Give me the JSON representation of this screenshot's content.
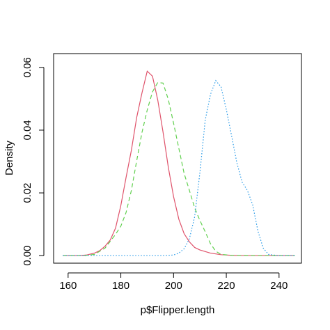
{
  "chart_data": {
    "type": "line",
    "title": "",
    "xlabel": "p$Flipper.length",
    "ylabel": "Density",
    "xlim": [
      154.5,
      248.5
    ],
    "ylim": [
      -0.0024,
      0.0644
    ],
    "x_ticks": [
      160,
      180,
      200,
      220,
      240
    ],
    "y_ticks": [
      0.0,
      0.02,
      0.04,
      0.06
    ],
    "x_tick_labels": [
      "160",
      "180",
      "200",
      "220",
      "240"
    ],
    "y_tick_labels": [
      "0.00",
      "0.02",
      "0.04",
      "0.06"
    ],
    "grid": false,
    "legend": "none",
    "series": [
      {
        "color": "#DF536B",
        "dash": "solid",
        "x": [
          158,
          164,
          167,
          170,
          172,
          174,
          176,
          178,
          180,
          182,
          184,
          186,
          188,
          190,
          192,
          194,
          196,
          198,
          200,
          202,
          204,
          206,
          208,
          210,
          214,
          218,
          222,
          226,
          232,
          240,
          246
        ],
        "y": [
          0,
          0,
          0.0002,
          0.0008,
          0.0016,
          0.003,
          0.005,
          0.0088,
          0.016,
          0.025,
          0.0336,
          0.044,
          0.0518,
          0.0588,
          0.0572,
          0.0496,
          0.0394,
          0.0282,
          0.0188,
          0.0116,
          0.007,
          0.0044,
          0.0026,
          0.0018,
          0.0008,
          0.0003,
          0.0001,
          0,
          0,
          0,
          0
        ]
      },
      {
        "color": "#61D04F",
        "dash": "dashed",
        "x": [
          158,
          166,
          170,
          174,
          176,
          178,
          180,
          182,
          184,
          186,
          188,
          190,
          192,
          194,
          196,
          198,
          200,
          202,
          204,
          206,
          208,
          210,
          212,
          214,
          216,
          218,
          222,
          230,
          240,
          246
        ],
        "y": [
          0,
          0,
          0.0004,
          0.0024,
          0.0046,
          0.0068,
          0.0094,
          0.0138,
          0.0208,
          0.0302,
          0.0392,
          0.0464,
          0.0522,
          0.0552,
          0.055,
          0.0498,
          0.0422,
          0.0342,
          0.0262,
          0.0208,
          0.0152,
          0.0112,
          0.0076,
          0.0038,
          0.0014,
          0.0004,
          0.0001,
          0,
          0,
          0
        ]
      },
      {
        "color": "#2297E6",
        "dash": "dotted",
        "x": [
          158,
          196,
          200,
          202,
          204,
          206,
          208,
          210,
          212,
          214,
          216,
          218,
          220,
          222,
          224,
          226,
          228,
          230,
          232,
          234,
          236,
          240,
          246
        ],
        "y": [
          0,
          0,
          0.0002,
          0.0008,
          0.0022,
          0.0054,
          0.0124,
          0.0266,
          0.0432,
          0.0514,
          0.0558,
          0.0538,
          0.0466,
          0.0382,
          0.0296,
          0.0234,
          0.0208,
          0.0162,
          0.0078,
          0.0024,
          0.0004,
          0,
          0
        ]
      }
    ]
  }
}
